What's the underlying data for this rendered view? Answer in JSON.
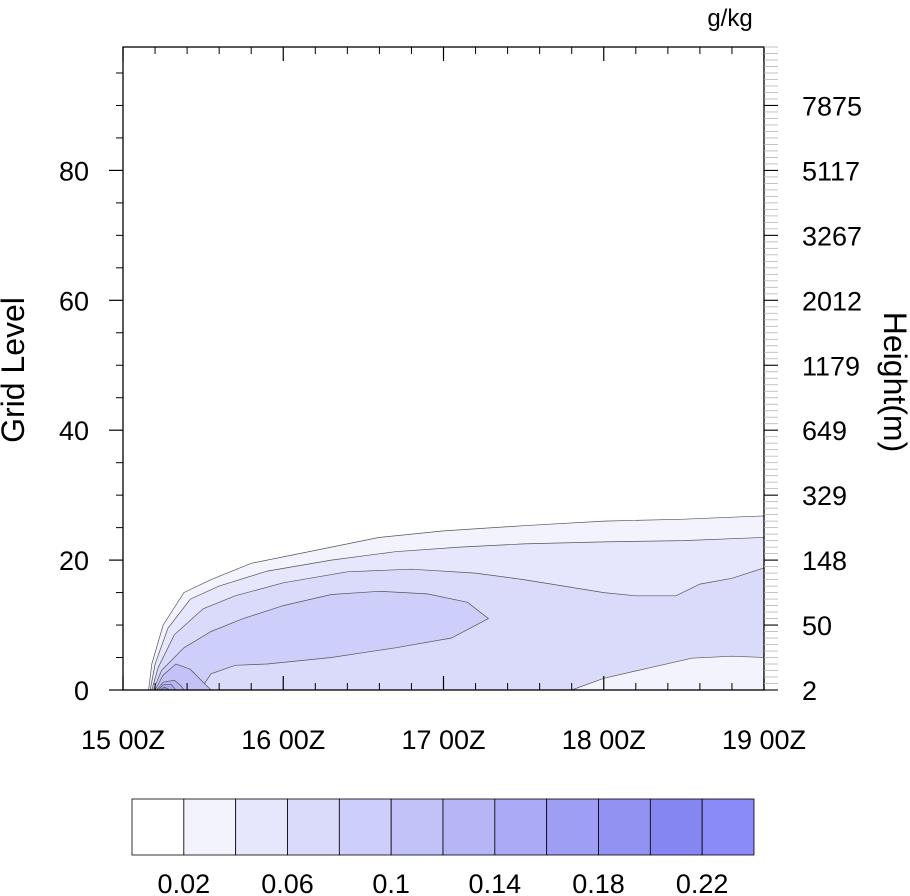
{
  "chart_data": {
    "type": "contour",
    "units": "g/kg",
    "x_tick_labels": [
      "15 00Z",
      "16 00Z",
      "17 00Z",
      "18 00Z",
      "19 00Z"
    ],
    "x_range": [
      0,
      4
    ],
    "ylabel": "Grid Level",
    "y_ticks": [
      0,
      20,
      40,
      60,
      80
    ],
    "ylim": [
      0,
      99
    ],
    "right_axis_label": "Height(m)",
    "right_tick_labels": [
      {
        "level": 0,
        "label": "2"
      },
      {
        "level": 10,
        "label": "50"
      },
      {
        "level": 20,
        "label": "148"
      },
      {
        "level": 30,
        "label": "329"
      },
      {
        "level": 40,
        "label": "649"
      },
      {
        "level": 50,
        "label": "1179"
      },
      {
        "level": 60,
        "label": "2012"
      },
      {
        "level": 70,
        "label": "3267"
      },
      {
        "level": 80,
        "label": "5117"
      },
      {
        "level": 90,
        "label": "7875"
      }
    ],
    "contour_levels": [
      0.02,
      0.04,
      0.06,
      0.08,
      0.1,
      0.12,
      0.14,
      0.16,
      0.18,
      0.2,
      0.22
    ],
    "colorbar_labels": [
      "0.02",
      "0.06",
      "0.1",
      "0.14",
      "0.18",
      "0.22"
    ],
    "colorbar_colors": [
      "#ffffff",
      "#f3f3fe",
      "#e6e6fc",
      "#dadafb",
      "#cecefa",
      "#c2c2f8",
      "#b6b6f7",
      "#aaaaf6",
      "#9e9ef4",
      "#9292f3",
      "#8686f2",
      "#8a8af8"
    ],
    "contours": [
      {
        "level": 0.02,
        "points": [
          [
            0.16,
            0
          ],
          [
            0.18,
            4
          ],
          [
            0.25,
            10
          ],
          [
            0.38,
            15
          ],
          [
            0.55,
            17
          ],
          [
            0.8,
            19.5
          ],
          [
            1.2,
            21.5
          ],
          [
            1.6,
            23.5
          ],
          [
            2.0,
            24.5
          ],
          [
            2.5,
            25.3
          ],
          [
            3.0,
            26
          ],
          [
            3.5,
            26.3
          ],
          [
            4,
            26.8
          ],
          [
            4,
            0
          ]
        ]
      },
      {
        "level": 0.04,
        "points": [
          [
            0.17,
            0
          ],
          [
            0.2,
            4
          ],
          [
            0.28,
            9.5
          ],
          [
            0.42,
            14
          ],
          [
            0.6,
            16
          ],
          [
            0.9,
            18.3
          ],
          [
            1.3,
            20
          ],
          [
            1.7,
            21.3
          ],
          [
            2.1,
            22
          ],
          [
            2.5,
            22.5
          ],
          [
            3.0,
            22.8
          ],
          [
            3.5,
            23
          ],
          [
            4,
            23.5
          ],
          [
            4,
            11.5
          ],
          [
            3.6,
            11.6
          ],
          [
            3.1,
            11.7
          ],
          [
            2.8,
            11
          ],
          [
            2.4,
            9.5
          ],
          [
            2.0,
            7.5
          ],
          [
            1.72,
            3
          ],
          [
            1.7,
            0
          ]
        ]
      },
      {
        "level": 0.06,
        "points": [
          [
            0.18,
            0
          ],
          [
            0.22,
            3.5
          ],
          [
            0.32,
            8.5
          ],
          [
            0.5,
            12.5
          ],
          [
            0.7,
            14.5
          ],
          [
            1.0,
            16.5
          ],
          [
            1.4,
            18.2
          ],
          [
            1.8,
            18.6
          ],
          [
            2.2,
            18
          ],
          [
            2.5,
            17
          ],
          [
            2.8,
            15.8
          ],
          [
            3.0,
            15
          ],
          [
            3.2,
            14.5
          ],
          [
            3.45,
            14.5
          ],
          [
            3.6,
            16.3
          ],
          [
            3.8,
            17.2
          ],
          [
            4,
            18.8
          ],
          [
            4,
            5
          ],
          [
            3.8,
            5.2
          ],
          [
            3.55,
            4.9
          ],
          [
            3.3,
            3.5
          ],
          [
            3.0,
            1.8
          ],
          [
            2.8,
            0
          ]
        ]
      },
      {
        "level": 0.08,
        "points": [
          [
            0.19,
            0
          ],
          [
            0.24,
            3
          ],
          [
            0.38,
            6.5
          ],
          [
            0.55,
            9
          ],
          [
            0.75,
            11
          ],
          [
            1.0,
            13
          ],
          [
            1.3,
            14.7
          ],
          [
            1.6,
            15.2
          ],
          [
            1.9,
            14.8
          ],
          [
            2.15,
            13.5
          ],
          [
            2.28,
            11
          ],
          [
            2.05,
            8
          ],
          [
            1.7,
            6.5
          ],
          [
            1.3,
            5
          ],
          [
            0.9,
            4
          ],
          [
            0.7,
            3.8
          ],
          [
            0.55,
            2.5
          ],
          [
            0.48,
            0
          ]
        ]
      },
      {
        "level": 0.1,
        "points": [
          [
            0.2,
            0
          ],
          [
            0.25,
            2.3
          ],
          [
            0.33,
            4
          ],
          [
            0.42,
            3.2
          ],
          [
            0.5,
            1.2
          ],
          [
            0.55,
            0
          ]
        ]
      },
      {
        "level": 0.12,
        "points": [
          [
            0.21,
            0
          ],
          [
            0.25,
            1.2
          ],
          [
            0.32,
            1.5
          ],
          [
            0.36,
            0.7
          ],
          [
            0.38,
            0
          ]
        ]
      },
      {
        "level": 0.14,
        "points": [
          [
            0.22,
            0
          ],
          [
            0.25,
            0.8
          ],
          [
            0.3,
            0.9
          ],
          [
            0.33,
            0
          ]
        ]
      },
      {
        "level": 0.18,
        "points": [
          [
            0.23,
            0
          ],
          [
            0.26,
            0.45
          ],
          [
            0.29,
            0
          ]
        ]
      }
    ]
  }
}
